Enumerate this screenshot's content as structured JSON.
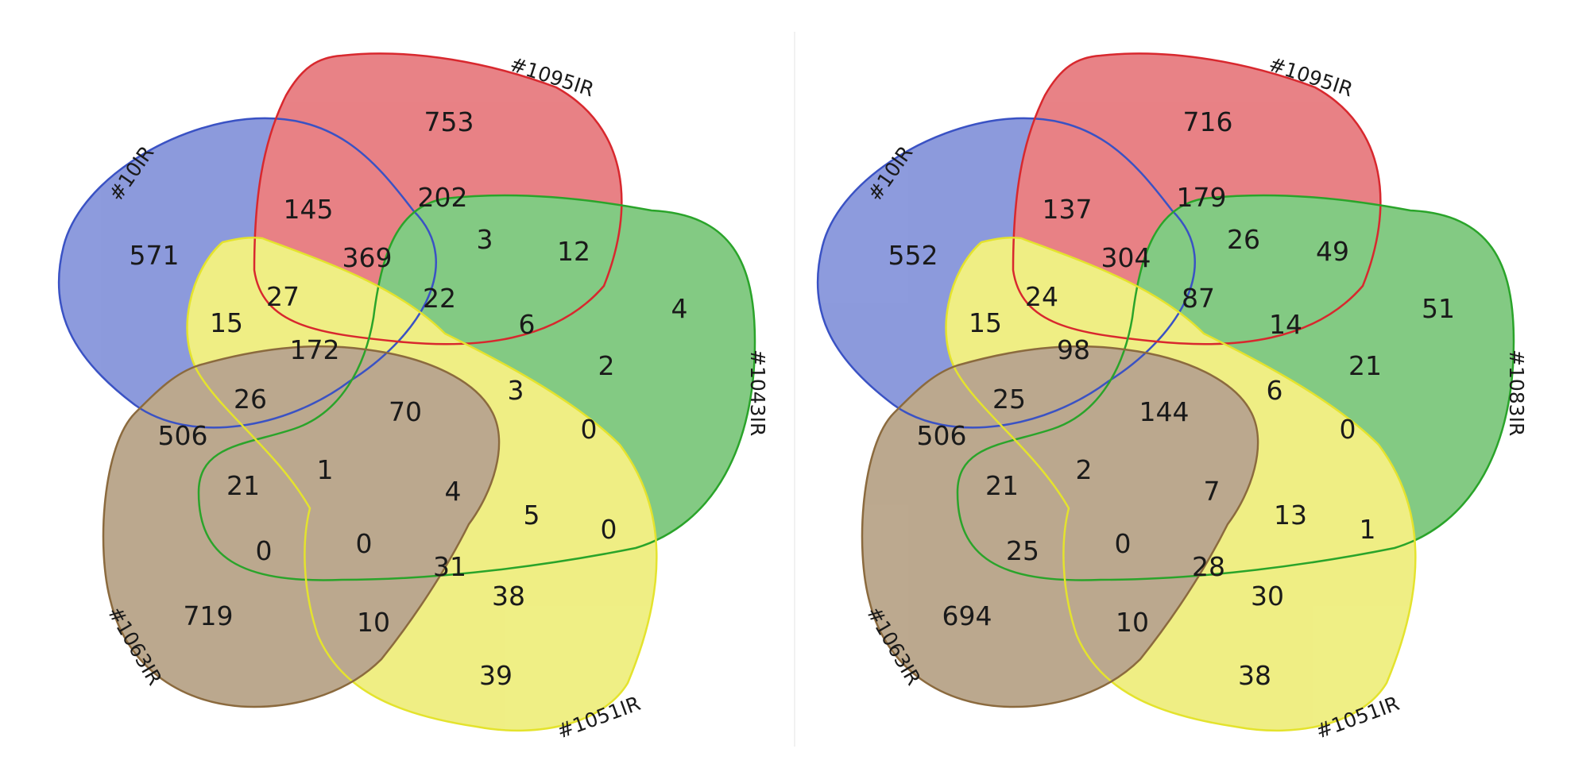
{
  "diagrams": [
    {
      "sets": [
        {
          "name": "#10IR",
          "color": "#3a52c4"
        },
        {
          "name": "#1095IR",
          "color": "#d8282e"
        },
        {
          "name": "#1043IR",
          "color": "#2aa42a"
        },
        {
          "name": "#1051IR",
          "color": "#e4e32d"
        },
        {
          "name": "#1063IR",
          "color": "#8b6a3e"
        }
      ],
      "regions": [
        "753",
        "145",
        "202",
        "571",
        "3",
        "12",
        "369",
        "4",
        "27",
        "22",
        "15",
        "6",
        "172",
        "2",
        "26",
        "70",
        "3",
        "0",
        "506",
        "1",
        "4",
        "21",
        "5",
        "0",
        "0",
        "0",
        "31",
        "38",
        "719",
        "10",
        "39"
      ]
    },
    {
      "sets": [
        {
          "name": "#10IR",
          "color": "#3a52c4"
        },
        {
          "name": "#1095IR",
          "color": "#d8282e"
        },
        {
          "name": "#1083IR",
          "color": "#2aa42a"
        },
        {
          "name": "#1051IR",
          "color": "#e4e32d"
        },
        {
          "name": "#1063IR",
          "color": "#8b6a3e"
        }
      ],
      "regions": [
        "716",
        "137",
        "179",
        "552",
        "26",
        "49",
        "304",
        "51",
        "24",
        "87",
        "15",
        "14",
        "98",
        "21",
        "25",
        "144",
        "6",
        "0",
        "506",
        "2",
        "7",
        "21",
        "13",
        "1",
        "25",
        "0",
        "28",
        "30",
        "694",
        "10",
        "38"
      ]
    }
  ]
}
